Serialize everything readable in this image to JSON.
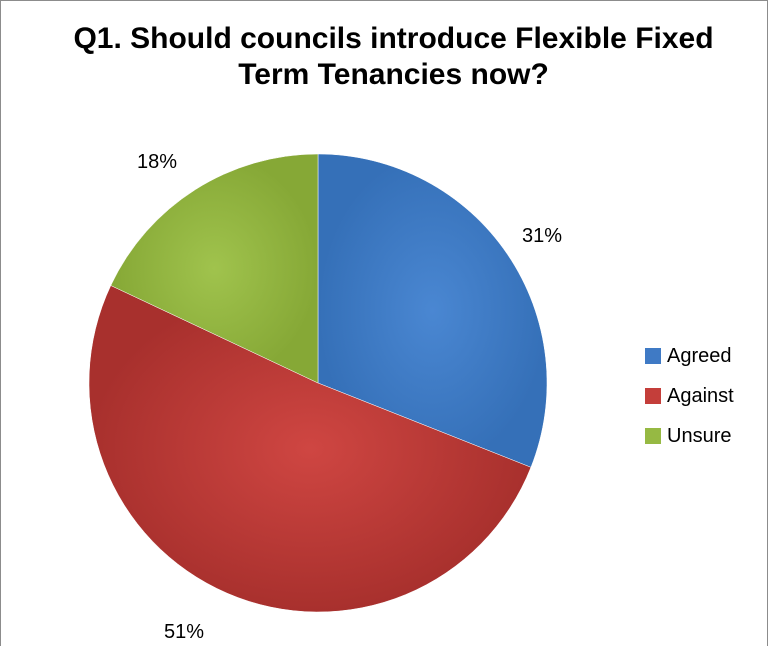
{
  "chart_data": {
    "type": "pie",
    "title": "Q1. Should councils introduce Flexible Fixed Term Tenancies now?",
    "title_lines": [
      "Q1. Should councils introduce Flexible Fixed",
      "Term Tenancies now?"
    ],
    "categories": [
      "Agreed",
      "Against",
      "Unsure"
    ],
    "values": [
      31,
      51,
      18
    ],
    "data_labels": [
      "31%",
      "51%",
      "18%"
    ],
    "colors": [
      "#3f7ac5",
      "#c43e3a",
      "#96b943"
    ],
    "legend": {
      "position": "right",
      "entries": [
        "Agreed",
        "Against",
        "Unsure"
      ]
    }
  }
}
